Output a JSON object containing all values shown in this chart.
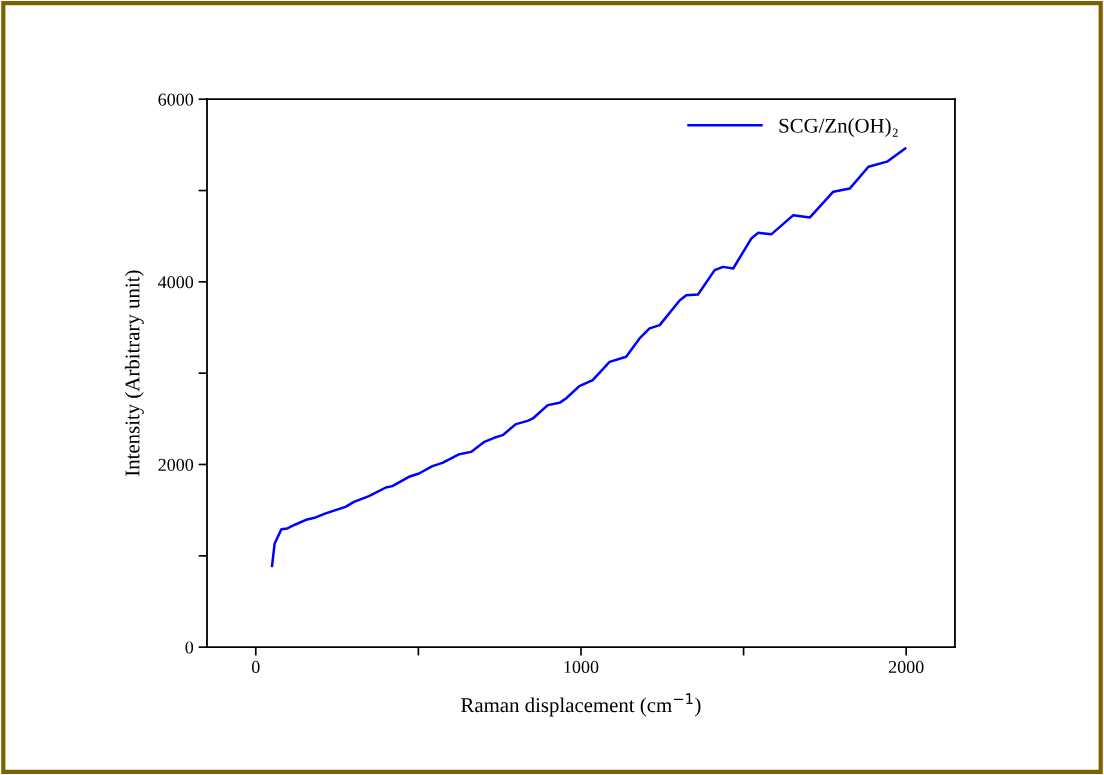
{
  "chart_data": {
    "type": "line",
    "xlabel": "Raman displacement (cm$^{−1}$)",
    "ylabel": "Intensity (Arbitrary unit)",
    "xlim": [
      -150,
      2150
    ],
    "ylim": [
      0,
      6000
    ],
    "xticks": [
      0,
      {
        "value": 500,
        "label": null
      },
      1000,
      {
        "value": 1500,
        "label": null
      },
      2000
    ],
    "yticks": [
      0,
      {
        "value": 1000,
        "label": null
      },
      2000,
      {
        "value": 3000,
        "label": null
      },
      4000,
      {
        "value": 5000,
        "label": null
      },
      6000
    ],
    "grid": false,
    "legend": "top right",
    "marker": "none",
    "line_style": "solid",
    "series": [
      {
        "name": "SCG/Zn(OH)₂",
        "color": "#0000ff",
        "x": [
          50,
          58,
          79,
          97,
          122,
          158,
          184,
          215,
          276,
          302,
          348,
          400,
          420,
          471,
          502,
          543,
          574,
          626,
          662,
          703,
          733,
          759,
          800,
          836,
          852,
          898,
          934,
          954,
          995,
          1036,
          1088,
          1139,
          1180,
          1211,
          1242,
          1304,
          1324,
          1360,
          1411,
          1437,
          1468,
          1524,
          1545,
          1586,
          1653,
          1704,
          1776,
          1827,
          1884,
          1941,
          1997
        ],
        "values": [
          890,
          1135,
          1292,
          1300,
          1343,
          1398,
          1420,
          1464,
          1536,
          1591,
          1653,
          1748,
          1763,
          1865,
          1901,
          1982,
          2018,
          2113,
          2138,
          2248,
          2292,
          2321,
          2442,
          2478,
          2504,
          2650,
          2675,
          2723,
          2858,
          2923,
          3124,
          3179,
          3380,
          3490,
          3526,
          3799,
          3854,
          3862,
          4128,
          4164,
          4146,
          4475,
          4537,
          4522,
          4730,
          4705,
          4987,
          5023,
          5260,
          5316,
          5460
        ]
      }
    ]
  }
}
